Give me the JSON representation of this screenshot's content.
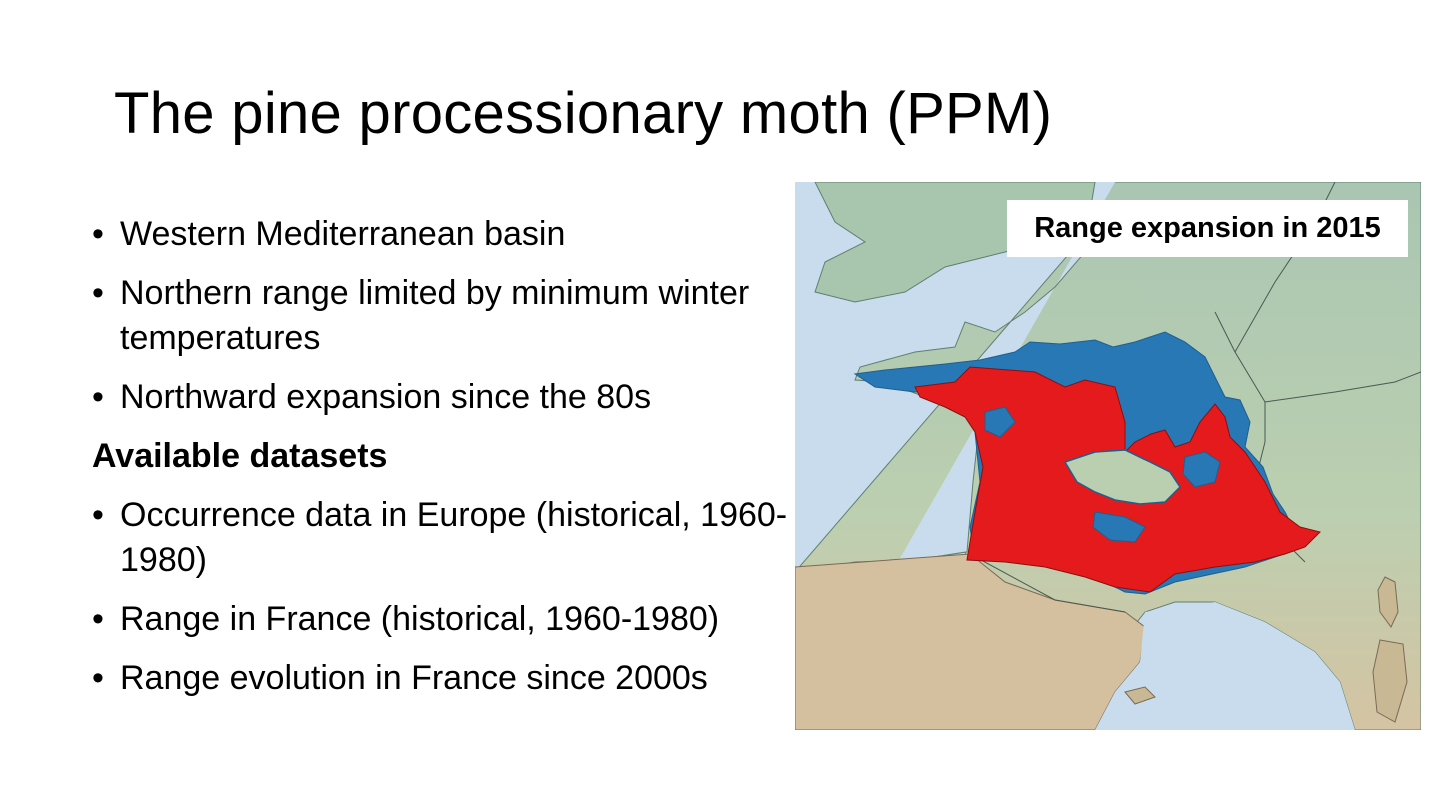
{
  "slide": {
    "title": "The pine processionary moth (PPM)",
    "bullets_top": [
      {
        "marker": "•",
        "text": "Western Mediterranean basin"
      },
      {
        "marker": "•",
        "text": "Northern range limited by minimum winter temperatures"
      },
      {
        "marker": "•",
        "text": "Northward expansion since the 80s"
      }
    ],
    "subheading": "Available datasets",
    "bullets_bottom": [
      {
        "marker": "•",
        "text": "Occurrence data in Europe (historical, 1960-1980)"
      },
      {
        "marker": "•",
        "text": "Range in France (historical, 1960-1980)"
      },
      {
        "marker": "•",
        "text": "Range evolution in France since 2000s"
      }
    ]
  },
  "map": {
    "caption": "Range expansion in 2015",
    "colors": {
      "sea": "#c8dced",
      "land": "#b9cfb3",
      "land_dry": "#d9c4a4",
      "historical_range": "#e41a1c",
      "expansion_2015": "#2878b5"
    }
  }
}
